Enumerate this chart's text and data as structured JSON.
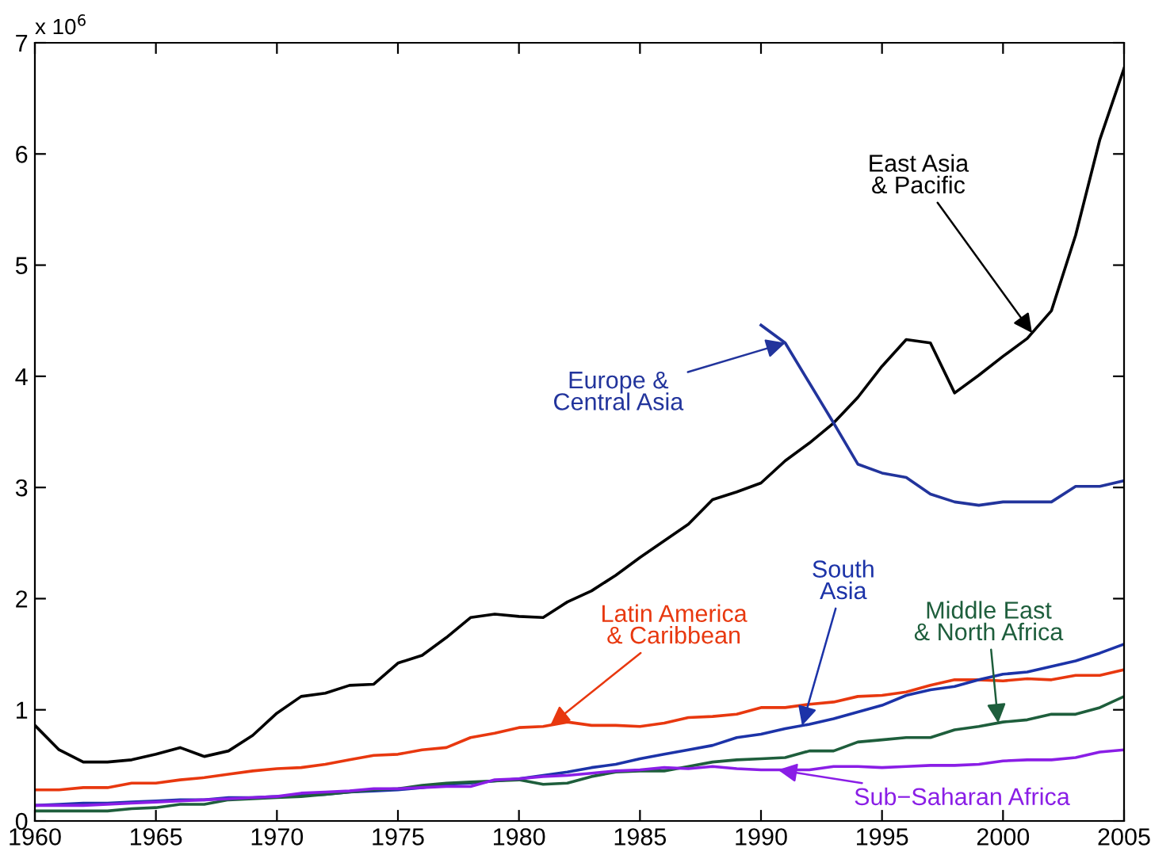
{
  "chart_data": {
    "type": "line",
    "x": [
      1960,
      1961,
      1962,
      1963,
      1964,
      1965,
      1966,
      1967,
      1968,
      1969,
      1970,
      1971,
      1972,
      1973,
      1974,
      1975,
      1976,
      1977,
      1978,
      1979,
      1980,
      1981,
      1982,
      1983,
      1984,
      1985,
      1986,
      1987,
      1988,
      1989,
      1990,
      1991,
      1992,
      1993,
      1994,
      1995,
      1996,
      1997,
      1998,
      1999,
      2000,
      2001,
      2002,
      2003,
      2004,
      2005
    ],
    "series": [
      {
        "name": "East Asia\n& Pacific",
        "color": "#000000",
        "values": [
          0.86,
          0.64,
          0.53,
          0.53,
          0.55,
          0.6,
          0.66,
          0.58,
          0.63,
          0.77,
          0.97,
          1.12,
          1.15,
          1.22,
          1.23,
          1.42,
          1.49,
          1.65,
          1.83,
          1.86,
          1.84,
          1.83,
          1.97,
          2.07,
          2.21,
          2.37,
          2.52,
          2.67,
          2.89,
          2.96,
          3.04,
          3.24,
          3.4,
          3.58,
          3.81,
          4.09,
          4.33,
          4.3,
          3.85,
          4.01,
          4.18,
          4.34,
          4.59,
          5.27,
          6.13,
          6.77
        ]
      },
      {
        "name": "Europe &\nCentral Asia",
        "color": "#22349c",
        "values": [
          null,
          null,
          null,
          null,
          null,
          null,
          null,
          null,
          null,
          null,
          null,
          null,
          null,
          null,
          null,
          null,
          null,
          null,
          null,
          null,
          null,
          null,
          null,
          null,
          null,
          null,
          null,
          null,
          null,
          null,
          4.46,
          4.3,
          3.94,
          3.58,
          3.21,
          3.13,
          3.09,
          2.94,
          2.87,
          2.84,
          2.87,
          2.87,
          2.87,
          3.01,
          3.01,
          3.06
        ]
      },
      {
        "name": "Latin America\n& Caribbean",
        "color": "#e8380f",
        "values": [
          0.28,
          0.28,
          0.3,
          0.3,
          0.34,
          0.34,
          0.37,
          0.39,
          0.42,
          0.45,
          0.47,
          0.48,
          0.51,
          0.55,
          0.59,
          0.6,
          0.64,
          0.66,
          0.75,
          0.79,
          0.84,
          0.85,
          0.89,
          0.86,
          0.86,
          0.85,
          0.88,
          0.93,
          0.94,
          0.96,
          1.02,
          1.02,
          1.05,
          1.07,
          1.12,
          1.13,
          1.16,
          1.22,
          1.27,
          1.27,
          1.26,
          1.28,
          1.27,
          1.31,
          1.31,
          1.36
        ]
      },
      {
        "name": "South\nAsia",
        "color": "#1c33a8",
        "values": [
          0.14,
          0.15,
          0.16,
          0.16,
          0.17,
          0.18,
          0.19,
          0.19,
          0.21,
          0.21,
          0.22,
          0.23,
          0.24,
          0.26,
          0.27,
          0.28,
          0.3,
          0.33,
          0.34,
          0.36,
          0.38,
          0.41,
          0.44,
          0.48,
          0.51,
          0.56,
          0.6,
          0.64,
          0.68,
          0.75,
          0.78,
          0.83,
          0.87,
          0.92,
          0.98,
          1.04,
          1.13,
          1.18,
          1.21,
          1.27,
          1.32,
          1.34,
          1.39,
          1.44,
          1.51,
          1.59
        ]
      },
      {
        "name": "Middle East\n& North Africa",
        "color": "#1e5e3c",
        "values": [
          0.09,
          0.09,
          0.09,
          0.09,
          0.11,
          0.12,
          0.15,
          0.15,
          0.19,
          0.2,
          0.21,
          0.22,
          0.24,
          0.26,
          0.28,
          0.29,
          0.32,
          0.34,
          0.35,
          0.36,
          0.37,
          0.33,
          0.34,
          0.4,
          0.44,
          0.45,
          0.45,
          0.49,
          0.53,
          0.55,
          0.56,
          0.57,
          0.63,
          0.63,
          0.71,
          0.73,
          0.75,
          0.75,
          0.82,
          0.85,
          0.89,
          0.91,
          0.96,
          0.96,
          1.02,
          1.12
        ]
      },
      {
        "name": "Sub−Saharan Africa",
        "color": "#8a1ee6",
        "values": [
          0.14,
          0.14,
          0.14,
          0.15,
          0.16,
          0.17,
          0.18,
          0.19,
          0.2,
          0.21,
          0.22,
          0.25,
          0.26,
          0.27,
          0.29,
          0.29,
          0.3,
          0.31,
          0.31,
          0.37,
          0.38,
          0.4,
          0.41,
          0.43,
          0.45,
          0.46,
          0.48,
          0.47,
          0.49,
          0.47,
          0.46,
          0.46,
          0.46,
          0.49,
          0.49,
          0.48,
          0.49,
          0.5,
          0.5,
          0.51,
          0.54,
          0.55,
          0.55,
          0.57,
          0.62,
          0.64
        ]
      }
    ],
    "annotations": [
      "x 10$^{6}$"
    ],
    "xlim": [
      1960,
      2005
    ],
    "xticks": [
      1960,
      1965,
      1970,
      1975,
      1980,
      1985,
      1990,
      1995,
      2000,
      2005
    ],
    "ylim": [
      0,
      7
    ],
    "yticks": [
      0,
      1,
      2,
      3,
      4,
      5,
      6,
      7
    ],
    "grid": false,
    "legend": false,
    "marker": "none",
    "line_style": "solid"
  }
}
